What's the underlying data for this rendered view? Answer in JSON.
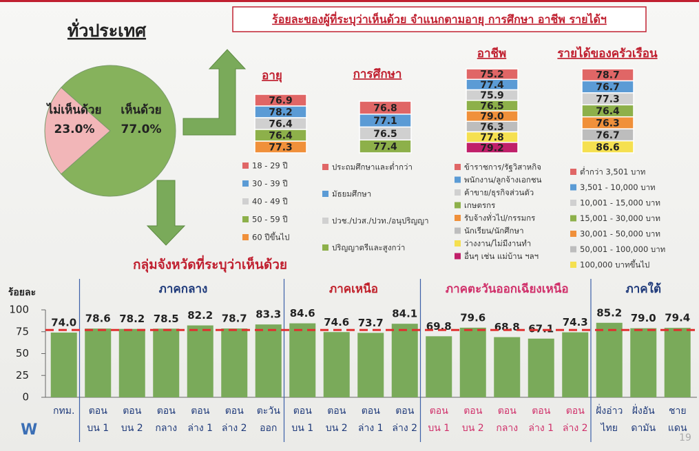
{
  "header": {
    "title": "ทั่วประเทศ",
    "subtitle": "ร้อยละของผู้ที่ระบุว่าเห็นด้วย จำแนกตามอายุ การศึกษา อาชีพ รายได้ฯ",
    "page": "19"
  },
  "chart_data": [
    {
      "type": "pie",
      "categories": [
        "เห็นด้วย",
        "ไม่เห็นด้วย"
      ],
      "values": [
        77.0,
        23.0
      ],
      "value_labels": [
        "77.0%",
        "23.0%"
      ],
      "colors": [
        "#86b25c",
        "#f2b6b8"
      ]
    },
    {
      "type": "stack",
      "title": "อายุ",
      "categories": [
        "18 - 29 ปี",
        "30 - 39 ปี",
        "40 - 49 ปี",
        "50 - 59 ปี",
        "60 ปีขึ้นไป"
      ],
      "values": [
        76.9,
        78.2,
        76.4,
        76.4,
        77.3
      ],
      "value_labels": [
        "76.9",
        "78.2",
        "76.4",
        "76.4",
        "77.3"
      ],
      "colors": [
        "#e06666",
        "#5b9bd5",
        "#d0d0d0",
        "#8db04a",
        "#f0903a"
      ]
    },
    {
      "type": "stack",
      "title": "การศึกษา",
      "categories": [
        "ประถมศึกษาและต่ำกว่า",
        "มัธยมศึกษา",
        "ปวช./ปวส./ปวท./อนุปริญญา",
        "ปริญญาตรีและสูงกว่า"
      ],
      "values": [
        76.8,
        77.1,
        76.5,
        77.4
      ],
      "value_labels": [
        "76.8",
        "77.1",
        "76.5",
        "77.4"
      ],
      "colors": [
        "#e06666",
        "#5b9bd5",
        "#d0d0d0",
        "#8db04a"
      ]
    },
    {
      "type": "stack",
      "title": "อาชีพ",
      "categories": [
        "ข้าราชการ/รัฐวิสาหกิจ",
        "พนักงาน/ลูกจ้างเอกชน",
        "ค้าขาย/ธุรกิจส่วนตัว",
        "เกษตรกร",
        "รับจ้างทั่วไป/กรรมกร",
        "นักเรียน/นักศึกษา",
        "ว่างงาน/ไม่มีงานทำ",
        "อื่นๆ เช่น แม่บ้าน ฯลฯ"
      ],
      "values": [
        75.2,
        77.4,
        75.9,
        76.5,
        79.0,
        76.3,
        77.8,
        79.2
      ],
      "value_labels": [
        "75.2",
        "77.4",
        "75.9",
        "76.5",
        "79.0",
        "76.3",
        "77.8",
        "79.2"
      ],
      "colors": [
        "#e06666",
        "#5b9bd5",
        "#d0d0d0",
        "#8db04a",
        "#f0903a",
        "#bdbdbd",
        "#f5e050",
        "#c0206a"
      ]
    },
    {
      "type": "stack",
      "title": "รายได้ของครัวเรือน",
      "categories": [
        "ต่ำกว่า 3,501 บาท",
        "3,501 - 10,000 บาท",
        "10,001 - 15,000 บาท",
        "15,001 - 30,000 บาท",
        "30,001 - 50,000 บาท",
        "50,001 - 100,000 บาท",
        "100,000 บาทขึ้นไป"
      ],
      "values": [
        78.7,
        76.7,
        77.3,
        76.4,
        76.3,
        76.7,
        86.6
      ],
      "value_labels": [
        "78.7",
        "76.7",
        "77.3",
        "76.4",
        "76.3",
        "76.7",
        "86.6"
      ],
      "colors": [
        "#e06666",
        "#5b9bd5",
        "#d0d0d0",
        "#8db04a",
        "#f0903a",
        "#bdbdbd",
        "#f5e050"
      ]
    },
    {
      "type": "bar",
      "title": "กลุ่มจังหวัดที่ระบุว่าเห็นด้วย",
      "ylabel": "ร้อยละ",
      "ylim": [
        0,
        100
      ],
      "yticks": [
        0,
        25,
        50,
        75,
        100
      ],
      "color": "#7aaa5a",
      "reference_line": {
        "value": 77,
        "color": "#e03030"
      },
      "groups": [
        {
          "color": "#1f3a7a",
          "categories": [
            [
              "กทม."
            ]
          ],
          "values": [
            74.0
          ],
          "value_labels": [
            "74.0"
          ]
        },
        {
          "name": "ภาคกลาง",
          "color": "#1f3a7a",
          "categories": [
            [
              "ตอน",
              "บน 1"
            ],
            [
              "ตอน",
              "บน 2"
            ],
            [
              "ตอน",
              "กลาง"
            ],
            [
              "ตอน",
              "ล่าง 1"
            ],
            [
              "ตอน",
              "ล่าง 2"
            ],
            [
              "ตะวัน",
              "ออก"
            ]
          ],
          "values": [
            78.6,
            78.2,
            78.5,
            82.2,
            78.7,
            83.3
          ],
          "value_labels": [
            "78.6",
            "78.2",
            "78.5",
            "82.2",
            "78.7",
            "83.3"
          ]
        },
        {
          "name": "ภาคเหนือ",
          "color": "#c0202a",
          "label_color": "#1f3a7a",
          "categories": [
            [
              "ตอน",
              "บน 1"
            ],
            [
              "ตอน",
              "บน 2"
            ],
            [
              "ตอน",
              "ล่าง 1"
            ],
            [
              "ตอน",
              "ล่าง 2"
            ]
          ],
          "values": [
            84.6,
            74.6,
            73.7,
            84.1
          ],
          "value_labels": [
            "84.6",
            "74.6",
            "73.7",
            "84.1"
          ]
        },
        {
          "name": "ภาคตะวันออกเฉียงเหนือ",
          "color": "#d0306a",
          "label_color": "#d0306a",
          "categories": [
            [
              "ตอน",
              "บน 1"
            ],
            [
              "ตอน",
              "บน 2"
            ],
            [
              "ตอน",
              "กลาง"
            ],
            [
              "ตอน",
              "ล่าง 1"
            ],
            [
              "ตอน",
              "ล่าง 2"
            ]
          ],
          "values": [
            69.8,
            79.6,
            68.8,
            67.1,
            74.3
          ],
          "value_labels": [
            "69.8",
            "79.6",
            "68.8",
            "67.1",
            "74.3"
          ]
        },
        {
          "name": "ภาคใต้",
          "color": "#1f3a7a",
          "categories": [
            [
              "ฝั่งอ่าว",
              "ไทย"
            ],
            [
              "ฝั่งอัน",
              "ดามัน"
            ],
            [
              "ชาย",
              "แดน"
            ]
          ],
          "values": [
            85.2,
            79.0,
            79.4
          ],
          "value_labels": [
            "85.2",
            "79.0",
            "79.4"
          ]
        }
      ]
    }
  ]
}
